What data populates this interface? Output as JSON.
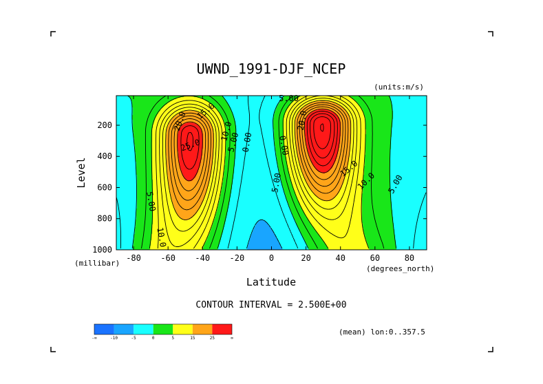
{
  "chart_data": {
    "type": "contour",
    "title": "UWND_1991-DJF_NCEP",
    "units": "(units:m/s)",
    "xlabel": "Latitude",
    "x_units": "(degrees_north)",
    "ylabel": "Level",
    "y_units": "(millibar)",
    "xlim": [
      -90,
      90
    ],
    "ylim": [
      1000,
      10
    ],
    "y_reversed": true,
    "x_ticks": [
      "-80",
      "-60",
      "-40",
      "-20",
      "0",
      "20",
      "40",
      "60",
      "80"
    ],
    "x_tick_values": [
      -80,
      -60,
      -40,
      -20,
      0,
      20,
      40,
      60,
      80
    ],
    "y_ticks": [
      "200",
      "400",
      "600",
      "800",
      "1000"
    ],
    "y_tick_values": [
      200,
      400,
      600,
      800,
      1000
    ],
    "contour_interval_label": "CONTOUR INTERVAL = 2.500E+00",
    "mean_label": "(mean) lon:0..357.5",
    "contour_labels": [
      {
        "text": "15.0",
        "lat": -38,
        "lev": 110,
        "rot": -40
      },
      {
        "text": "20.0",
        "lat": -53,
        "lev": 175,
        "rot": -70
      },
      {
        "text": "25.0",
        "lat": -47,
        "lev": 330,
        "rot": -20
      },
      {
        "text": "10.0",
        "lat": -26,
        "lev": 240,
        "rot": -75
      },
      {
        "text": "5.00",
        "lat": -22,
        "lev": 310,
        "rot": -75
      },
      {
        "text": "0.00",
        "lat": -14,
        "lev": 310,
        "rot": -80
      },
      {
        "text": "0.00",
        "lat": 7,
        "lev": 330,
        "rot": 80
      },
      {
        "text": "5.00",
        "lat": 3,
        "lev": 570,
        "rot": -80
      },
      {
        "text": "5.00",
        "lat": -70,
        "lev": 690,
        "rot": 80
      },
      {
        "text": "10.0",
        "lat": -64,
        "lev": 920,
        "rot": 80
      },
      {
        "text": "15.0",
        "lat": 45,
        "lev": 480,
        "rot": -40
      },
      {
        "text": "10.0",
        "lat": 55,
        "lev": 560,
        "rot": -45
      },
      {
        "text": "5.00",
        "lat": 72,
        "lev": 580,
        "rot": -60
      },
      {
        "text": "20.0",
        "lat": 18,
        "lev": 170,
        "rot": -80
      },
      {
        "text": "5.00",
        "lat": 10,
        "lev": 30,
        "rot": 0
      }
    ],
    "colorbar": {
      "levels": [
        "-∞",
        "-10",
        "-5",
        "0",
        "5",
        "15",
        "25",
        "∞"
      ],
      "colors": [
        "#1a73ff",
        "#19a5ff",
        "#19ffff",
        "#19e619",
        "#ffff19",
        "#ffa519",
        "#ff1919"
      ]
    },
    "fields": {
      "surface_band": [
        {
          "center_lat": 0,
          "width": 38,
          "value": -6
        }
      ],
      "jets": [
        {
          "lat": -47,
          "lev": 260,
          "peak": 31,
          "lat_width": 12,
          "lev_width": 170
        },
        {
          "lat": 29,
          "lev": 190,
          "peak": 37,
          "lat_width": 13,
          "lev_width": 150
        }
      ]
    }
  }
}
